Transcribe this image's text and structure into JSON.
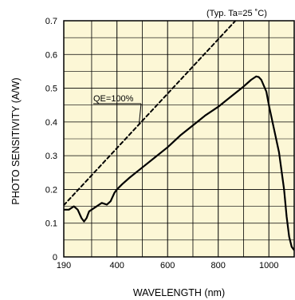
{
  "chart_data": {
    "type": "line",
    "title": "",
    "note": "(Typ. Ta=25 ˚C)",
    "xlabel": "WAVELENGTH (nm)",
    "ylabel": "PHOTO SENSITIVITY (A/W)",
    "xlim": [
      190,
      1100
    ],
    "ylim": [
      0,
      0.7
    ],
    "grid": true,
    "background_color": "#fcf7d6",
    "x_ticks": [
      190,
      400,
      600,
      800,
      1000
    ],
    "y_ticks": [
      0,
      0.1,
      0.2,
      0.3,
      0.4,
      0.5,
      0.6,
      0.7
    ],
    "x_tick_labels": [
      "190",
      "400",
      "600",
      "800",
      "1000"
    ],
    "y_tick_labels": [
      "0",
      "0.1",
      "0.2",
      "0.3",
      "0.4",
      "0.5",
      "0.6",
      "0.7"
    ],
    "series": [
      {
        "style": "solid",
        "color": "#000000",
        "x": [
          190,
          210,
          230,
          245,
          260,
          270,
          280,
          290,
          300,
          320,
          340,
          360,
          375,
          390,
          400,
          420,
          450,
          500,
          550,
          600,
          650,
          700,
          750,
          800,
          850,
          900,
          930,
          950,
          960,
          970,
          990,
          1000,
          1020,
          1040,
          1060,
          1070,
          1080,
          1090,
          1100
        ],
        "y": [
          0.14,
          0.14,
          0.15,
          0.14,
          0.115,
          0.105,
          0.115,
          0.135,
          0.14,
          0.15,
          0.16,
          0.155,
          0.165,
          0.19,
          0.2,
          0.215,
          0.235,
          0.265,
          0.295,
          0.325,
          0.36,
          0.39,
          0.42,
          0.445,
          0.475,
          0.505,
          0.525,
          0.535,
          0.533,
          0.525,
          0.49,
          0.45,
          0.38,
          0.31,
          0.2,
          0.12,
          0.06,
          0.03,
          0.02
        ]
      },
      {
        "name": "QE=100%",
        "style": "dashed",
        "color": "#000000",
        "x": [
          190,
          1100
        ],
        "y": [
          0.1532,
          0.8871
        ]
      }
    ],
    "annotations": [
      {
        "text": "QE=100%"
      }
    ]
  }
}
